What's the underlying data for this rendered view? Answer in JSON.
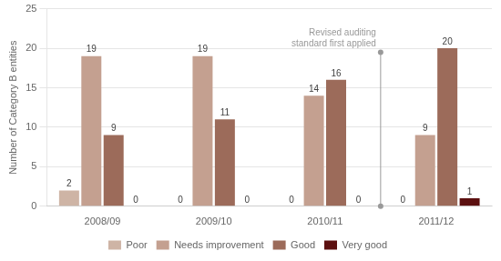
{
  "chart_data": {
    "type": "bar",
    "categories": [
      "2008/09",
      "2009/10",
      "2010/11",
      "2011/12"
    ],
    "series": [
      {
        "name": "Poor",
        "color": "#ceb4a5",
        "values": [
          2,
          0,
          0,
          0
        ]
      },
      {
        "name": "Needs improvement",
        "color": "#c4a090",
        "values": [
          19,
          19,
          14,
          9
        ]
      },
      {
        "name": "Good",
        "color": "#9c6b5a",
        "values": [
          9,
          11,
          16,
          20
        ]
      },
      {
        "name": "Very good",
        "color": "#5c1010",
        "values": [
          0,
          0,
          0,
          1
        ]
      }
    ],
    "ylabel": "Number of Category B entities",
    "ylim": [
      0,
      25
    ],
    "yticks": [
      0,
      5,
      10,
      15,
      20,
      25
    ],
    "grid": true,
    "legend": "bottom",
    "data_labels": true,
    "annotations": [
      {
        "text": "Revised auditing\nstandard first applied",
        "x_between": [
          "2010/11",
          "2011/12"
        ],
        "y": [
          0,
          19.5
        ],
        "color": "#999999"
      }
    ]
  }
}
